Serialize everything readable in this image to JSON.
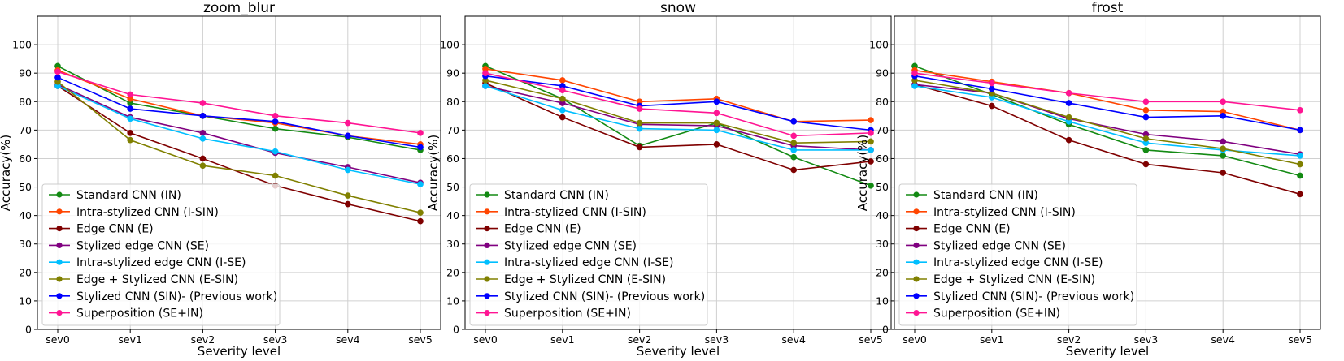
{
  "figure": {
    "ylabel": "Accuracy(%)",
    "xlabel": "Severity level"
  },
  "colors": {
    "Standard CNN (IN)": "#138a13",
    "Intra-stylized CNN (I-SIN)": "#ff4500",
    "Edge CNN (E)": "#7f0000",
    "Stylized edge CNN (SE)": "#800080",
    "Intra-stylized edge CNN (I-SE)": "#00bfff",
    "Edge + Stylized CNN (E-SIN)": "#808000",
    "Stylized CNN (SIN)- (Previous work)": "#0000ff",
    "Superposition (SE+IN)": "#ff1493"
  },
  "chart_data": [
    {
      "type": "line",
      "title": "zoom_blur",
      "xlabel": "Severity level",
      "ylabel": "Accuracy(%)",
      "categories": [
        "sev0",
        "sev1",
        "sev2",
        "sev3",
        "sev4",
        "sev5"
      ],
      "ylim": [
        0,
        110
      ],
      "yticks": [
        0,
        10,
        20,
        30,
        40,
        50,
        60,
        70,
        80,
        90,
        100
      ],
      "grid": true,
      "legend": "bottom-left",
      "series": [
        {
          "name": "Standard CNN (IN)",
          "values": [
            92.5,
            79.5,
            75.0,
            70.5,
            67.5,
            63.0
          ]
        },
        {
          "name": "Intra-stylized CNN (I-SIN)",
          "values": [
            91.0,
            81.0,
            75.0,
            72.5,
            68.0,
            65.0
          ]
        },
        {
          "name": "Edge CNN (E)",
          "values": [
            85.5,
            69.0,
            60.0,
            50.5,
            44.0,
            38.0
          ]
        },
        {
          "name": "Stylized edge CNN (SE)",
          "values": [
            86.0,
            74.5,
            69.0,
            62.0,
            57.0,
            51.5
          ]
        },
        {
          "name": "Intra-stylized edge CNN (I-SE)",
          "values": [
            85.5,
            74.0,
            67.0,
            62.5,
            56.0,
            51.0
          ]
        },
        {
          "name": "Edge + Stylized CNN (E-SIN)",
          "values": [
            87.0,
            66.5,
            57.5,
            54.0,
            47.0,
            41.0
          ]
        },
        {
          "name": "Stylized CNN (SIN)- (Previous work)",
          "values": [
            88.5,
            77.5,
            75.0,
            73.0,
            68.0,
            64.0
          ]
        },
        {
          "name": "Superposition (SE+IN)",
          "values": [
            90.5,
            82.5,
            79.5,
            75.0,
            72.5,
            69.0
          ]
        }
      ]
    },
    {
      "type": "line",
      "title": "snow",
      "xlabel": "Severity level",
      "ylabel": "Accuracy(%)",
      "categories": [
        "sev0",
        "sev1",
        "sev2",
        "sev3",
        "sev4",
        "sev5"
      ],
      "ylim": [
        0,
        110
      ],
      "yticks": [
        0,
        10,
        20,
        30,
        40,
        50,
        60,
        70,
        80,
        90,
        100
      ],
      "grid": true,
      "legend": "bottom-left",
      "series": [
        {
          "name": "Standard CNN (IN)",
          "values": [
            92.5,
            81.0,
            64.5,
            72.5,
            60.5,
            50.5
          ]
        },
        {
          "name": "Intra-stylized CNN (I-SIN)",
          "values": [
            91.5,
            87.5,
            80.0,
            81.0,
            73.0,
            73.5
          ]
        },
        {
          "name": "Edge CNN (E)",
          "values": [
            86.5,
            74.5,
            64.0,
            65.0,
            56.0,
            59.0
          ]
        },
        {
          "name": "Stylized edge CNN (SE)",
          "values": [
            85.5,
            79.5,
            72.0,
            71.5,
            64.5,
            63.0
          ]
        },
        {
          "name": "Intra-stylized edge CNN (I-SE)",
          "values": [
            85.5,
            77.0,
            70.5,
            70.0,
            63.0,
            63.0
          ]
        },
        {
          "name": "Edge + Stylized CNN (E-SIN)",
          "values": [
            87.5,
            81.0,
            72.5,
            72.5,
            65.5,
            66.0
          ]
        },
        {
          "name": "Stylized CNN (SIN)- (Previous work)",
          "values": [
            89.0,
            85.5,
            78.5,
            80.0,
            73.0,
            70.0
          ]
        },
        {
          "name": "Superposition (SE+IN)",
          "values": [
            90.0,
            84.0,
            77.5,
            76.0,
            68.0,
            69.0
          ]
        }
      ]
    },
    {
      "type": "line",
      "title": "frost",
      "xlabel": "Severity level",
      "ylabel": "Accuracy(%)",
      "categories": [
        "sev0",
        "sev1",
        "sev2",
        "sev3",
        "sev4",
        "sev5"
      ],
      "ylim": [
        0,
        110
      ],
      "yticks": [
        0,
        10,
        20,
        30,
        40,
        50,
        60,
        70,
        80,
        90,
        100
      ],
      "grid": true,
      "legend": "bottom-left",
      "series": [
        {
          "name": "Standard CNN (IN)",
          "values": [
            92.5,
            82.5,
            72.0,
            63.0,
            61.0,
            54.0
          ]
        },
        {
          "name": "Intra-stylized CNN (I-SIN)",
          "values": [
            91.0,
            87.0,
            83.0,
            77.0,
            76.5,
            70.0
          ]
        },
        {
          "name": "Edge CNN (E)",
          "values": [
            86.0,
            78.5,
            66.5,
            58.0,
            55.0,
            47.5
          ]
        },
        {
          "name": "Stylized edge CNN (SE)",
          "values": [
            86.0,
            83.0,
            74.0,
            68.5,
            66.0,
            61.5
          ]
        },
        {
          "name": "Intra-stylized edge CNN (I-SE)",
          "values": [
            85.5,
            81.5,
            73.0,
            65.5,
            63.0,
            61.0
          ]
        },
        {
          "name": "Edge + Stylized CNN (E-SIN)",
          "values": [
            87.5,
            83.0,
            74.5,
            67.0,
            63.5,
            58.0
          ]
        },
        {
          "name": "Stylized CNN (SIN)- (Previous work)",
          "values": [
            89.0,
            84.5,
            79.5,
            74.5,
            75.0,
            70.0
          ]
        },
        {
          "name": "Superposition (SE+IN)",
          "values": [
            90.0,
            86.5,
            83.0,
            80.0,
            80.0,
            77.0
          ]
        }
      ]
    }
  ]
}
